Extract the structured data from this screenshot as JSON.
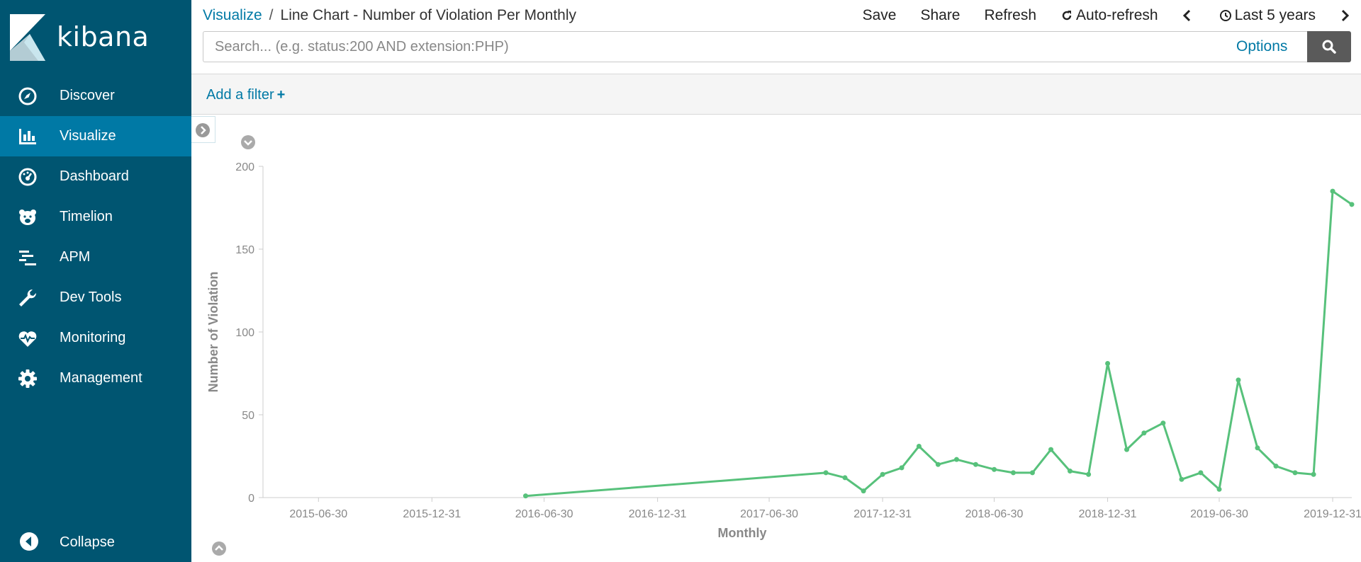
{
  "app": {
    "brand": "kibana"
  },
  "sidebar": {
    "items": [
      {
        "label": "Discover",
        "icon": "compass-icon",
        "active": false
      },
      {
        "label": "Visualize",
        "icon": "bar-chart-icon",
        "active": true
      },
      {
        "label": "Dashboard",
        "icon": "dashboard-gauge-icon",
        "active": false
      },
      {
        "label": "Timelion",
        "icon": "timelion-bear-icon",
        "active": false
      },
      {
        "label": "APM",
        "icon": "apm-lines-icon",
        "active": false
      },
      {
        "label": "Dev Tools",
        "icon": "wrench-icon",
        "active": false
      },
      {
        "label": "Monitoring",
        "icon": "heart-pulse-icon",
        "active": false
      },
      {
        "label": "Management",
        "icon": "gear-icon",
        "active": false
      }
    ],
    "collapse_label": "Collapse"
  },
  "breadcrumb": {
    "parent": "Visualize",
    "separator": "/",
    "current": "Line Chart - Number of Violation Per Monthly"
  },
  "toolbar": {
    "save": "Save",
    "share": "Share",
    "refresh": "Refresh",
    "auto_refresh": "Auto-refresh",
    "time_range": "Last 5 years"
  },
  "search": {
    "placeholder": "Search... (e.g. status:200 AND extension:PHP)",
    "value": "",
    "options_label": "Options"
  },
  "filter": {
    "add_label": "Add a filter",
    "add_symbol": "+"
  },
  "colors": {
    "sidebar_bg": "#005571",
    "sidebar_active": "#0079a5",
    "link": "#0079a5",
    "series_line": "#57c17b"
  },
  "chart_data": {
    "type": "line",
    "title": "",
    "xlabel": "Monthly",
    "ylabel": "Number of Violation",
    "ylim": [
      0,
      200
    ],
    "yticks": [
      0,
      50,
      100,
      150,
      200
    ],
    "xlim": [
      "2015-04-01",
      "2020-01-31"
    ],
    "xticks": [
      "2015-06-30",
      "2015-12-31",
      "2016-06-30",
      "2016-12-31",
      "2017-06-30",
      "2017-12-31",
      "2018-06-30",
      "2018-12-31",
      "2019-06-30",
      "2019-12-31"
    ],
    "grid": false,
    "series": [
      {
        "color": "#57c17b",
        "points": [
          {
            "x": "2016-05-31",
            "y": 1
          },
          {
            "x": "2017-09-30",
            "y": 15
          },
          {
            "x": "2017-10-31",
            "y": 12
          },
          {
            "x": "2017-11-30",
            "y": 4
          },
          {
            "x": "2017-12-31",
            "y": 14
          },
          {
            "x": "2018-01-31",
            "y": 18
          },
          {
            "x": "2018-02-28",
            "y": 31
          },
          {
            "x": "2018-03-31",
            "y": 20
          },
          {
            "x": "2018-04-30",
            "y": 23
          },
          {
            "x": "2018-05-31",
            "y": 20
          },
          {
            "x": "2018-06-30",
            "y": 17
          },
          {
            "x": "2018-07-31",
            "y": 15
          },
          {
            "x": "2018-08-31",
            "y": 15
          },
          {
            "x": "2018-09-30",
            "y": 29
          },
          {
            "x": "2018-10-31",
            "y": 16
          },
          {
            "x": "2018-11-30",
            "y": 14
          },
          {
            "x": "2018-12-31",
            "y": 81
          },
          {
            "x": "2019-01-31",
            "y": 29
          },
          {
            "x": "2019-02-28",
            "y": 39
          },
          {
            "x": "2019-03-31",
            "y": 45
          },
          {
            "x": "2019-04-30",
            "y": 11
          },
          {
            "x": "2019-05-31",
            "y": 15
          },
          {
            "x": "2019-06-30",
            "y": 5
          },
          {
            "x": "2019-07-31",
            "y": 71
          },
          {
            "x": "2019-08-31",
            "y": 30
          },
          {
            "x": "2019-09-30",
            "y": 19
          },
          {
            "x": "2019-10-31",
            "y": 15
          },
          {
            "x": "2019-11-30",
            "y": 14
          },
          {
            "x": "2019-12-31",
            "y": 185
          },
          {
            "x": "2020-01-31",
            "y": 177
          }
        ]
      }
    ]
  }
}
